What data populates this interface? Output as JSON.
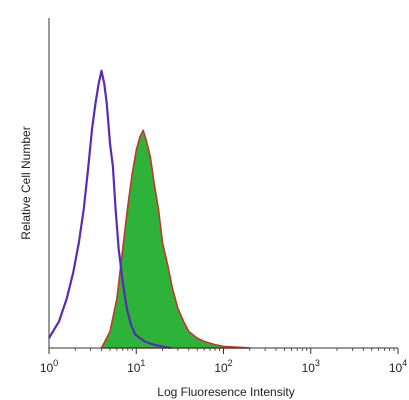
{
  "chart_data": {
    "type": "area",
    "title": "",
    "xlabel": "Log Fluoresence Intensity",
    "ylabel": "Relative Cell Number",
    "xscale": "log",
    "xlim": [
      1,
      10000
    ],
    "ylim": [
      0,
      1.0
    ],
    "grid": false,
    "legend": "none",
    "x_ticks": [
      {
        "base": "10",
        "exp": "0",
        "value": 1
      },
      {
        "base": "10",
        "exp": "1",
        "value": 10
      },
      {
        "base": "10",
        "exp": "2",
        "value": 100
      },
      {
        "base": "10",
        "exp": "3",
        "value": 1000
      },
      {
        "base": "10",
        "exp": "4",
        "value": 10000
      }
    ],
    "series": [
      {
        "style": "line",
        "color": "#5a2bb5",
        "x": [
          1.0,
          1.3,
          1.6,
          1.9,
          2.2,
          2.5,
          2.8,
          3.1,
          3.4,
          3.7,
          4.0,
          4.3,
          4.6,
          5.0,
          5.4,
          5.8,
          6.3,
          7.0,
          7.8,
          8.7,
          9.8,
          11,
          12.5,
          14,
          16,
          20,
          25
        ],
        "y": [
          0.03,
          0.08,
          0.15,
          0.23,
          0.32,
          0.42,
          0.54,
          0.66,
          0.74,
          0.8,
          0.84,
          0.8,
          0.74,
          0.62,
          0.55,
          0.42,
          0.3,
          0.2,
          0.12,
          0.07,
          0.04,
          0.03,
          0.02,
          0.015,
          0.01,
          0.005,
          0.0
        ]
      },
      {
        "style": "filled",
        "color": "#2db33a",
        "edge_color": "#c0392b",
        "x": [
          4.0,
          5.0,
          6.0,
          7.0,
          8.0,
          9.0,
          10.0,
          11.0,
          12.0,
          13.0,
          14.5,
          16.0,
          18.0,
          20.0,
          23.0,
          26.0,
          30.0,
          35.0,
          40.0,
          50.0,
          60.0,
          80.0,
          100.0,
          150.0,
          200.0
        ],
        "y": [
          0.0,
          0.05,
          0.15,
          0.3,
          0.43,
          0.53,
          0.6,
          0.64,
          0.66,
          0.63,
          0.58,
          0.5,
          0.42,
          0.32,
          0.25,
          0.18,
          0.12,
          0.08,
          0.05,
          0.03,
          0.02,
          0.01,
          0.005,
          0.002,
          0.0
        ]
      }
    ]
  }
}
